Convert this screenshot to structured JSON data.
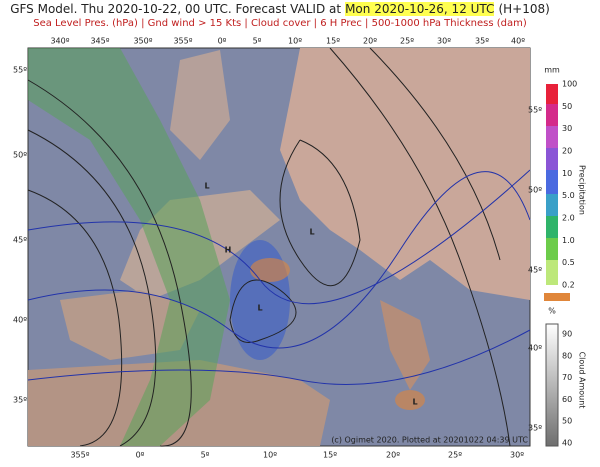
{
  "title": {
    "prefix": "GFS Model. Thu 2020-10-22, 00 UTC. Forecast VALID at",
    "highlight": "Mon 2020-10-26, 12 UTC",
    "suffix": "(H+108)"
  },
  "subtitle": "Sea Level Pres. (hPa) | Gnd wind > 15 Kts | Cloud cover | 6 H Prec | 500-1000 hPa Thickness (dam)",
  "map": {
    "lon_top": [
      "340º",
      "345º",
      "350º",
      "355º",
      "0º",
      "5º",
      "10º",
      "15º",
      "20º",
      "25º",
      "30º",
      "35º",
      "40º"
    ],
    "lon_bottom": [
      "355º",
      "0º",
      "5º",
      "10º",
      "15º",
      "20º",
      "25º",
      "30º"
    ],
    "lat_left": [
      "55º",
      "50º",
      "45º",
      "40º",
      "35º"
    ],
    "lat_right": [
      "55º",
      "50º",
      "45º",
      "40º",
      "35º"
    ],
    "pressure_centers": [
      "H",
      "L",
      "L",
      "L",
      "L"
    ],
    "credit": "(c) Ogimet 2020. Plotted at 20201022 04:39 UTC"
  },
  "legend": {
    "precip": {
      "unit": "mm",
      "title": "Precipitation",
      "ticks": [
        "100",
        "50",
        "30",
        "20",
        "10",
        "5.0",
        "2.0",
        "1.0",
        "0.5",
        "0.2"
      ]
    },
    "cloud": {
      "unit": "%",
      "title": "Cloud Amount",
      "ticks": [
        "90",
        "80",
        "70",
        "60",
        "50",
        "40"
      ]
    }
  }
}
